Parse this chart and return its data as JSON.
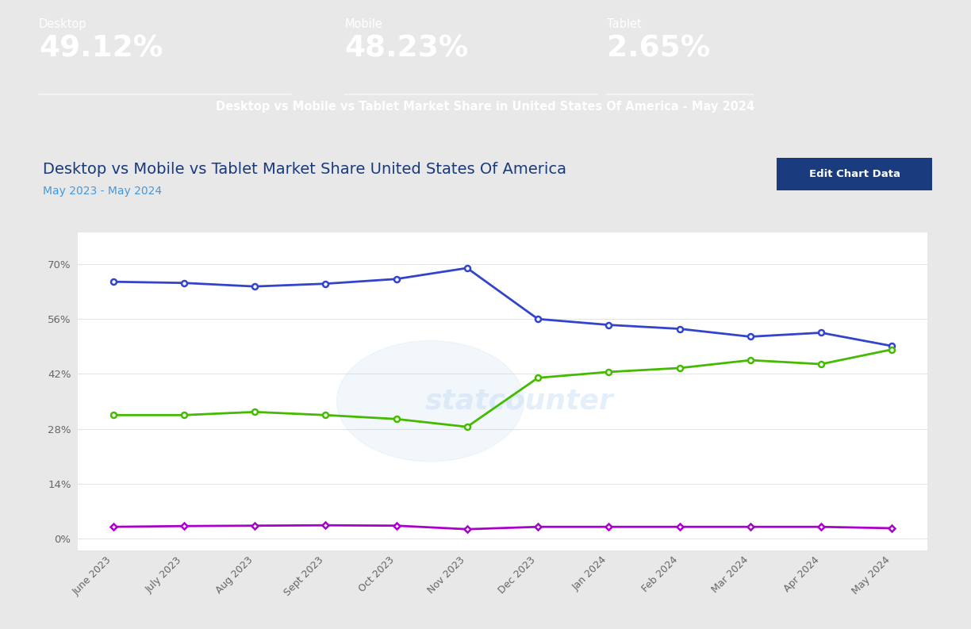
{
  "header_bg": "#0d2d8a",
  "page_bg": "#e8e8e8",
  "card_bg": "#ffffff",
  "header_text_color": "#ffffff",
  "metrics": [
    {
      "label": "Desktop",
      "value": "49.12%"
    },
    {
      "label": "Mobile",
      "value": "48.23%"
    },
    {
      "label": "Tablet",
      "value": "2.65%"
    }
  ],
  "header_subtitle": "Desktop vs Mobile vs Tablet Market Share in United States Of America - May 2024",
  "chart_title": "Desktop vs Mobile vs Tablet Market Share United States Of America",
  "chart_subtitle": "May 2023 - May 2024",
  "button_text": "Edit Chart Data",
  "button_bg": "#1a3c7e",
  "button_text_color": "#ffffff",
  "x_labels": [
    "June 2023",
    "July 2023",
    "Aug 2023",
    "Sept 2023",
    "Oct 2023",
    "Nov 2023",
    "Dec 2023",
    "Jan 2024",
    "Feb 2024",
    "Mar 2024",
    "Apr 2024",
    "May 2024"
  ],
  "desktop": [
    65.5,
    65.2,
    64.3,
    65.0,
    66.2,
    69.0,
    56.0,
    54.5,
    53.5,
    51.5,
    52.5,
    49.12
  ],
  "mobile": [
    31.5,
    31.5,
    32.3,
    31.5,
    30.5,
    28.5,
    41.0,
    42.5,
    43.5,
    45.5,
    44.5,
    48.23
  ],
  "tablet": [
    3.0,
    3.2,
    3.3,
    3.4,
    3.3,
    2.4,
    3.0,
    3.0,
    3.0,
    3.0,
    3.0,
    2.65
  ],
  "desktop_color": "#3344cc",
  "mobile_color": "#44bb00",
  "tablet_color": "#aa00cc",
  "grid_color": "#e5e5e5",
  "axis_label_color": "#666666",
  "yticks": [
    0,
    14,
    28,
    42,
    56,
    70
  ],
  "ylim": [
    -3,
    78
  ],
  "watermark_text": "statcounter",
  "title_color": "#1a3a7e",
  "subtitle_color": "#4499dd"
}
